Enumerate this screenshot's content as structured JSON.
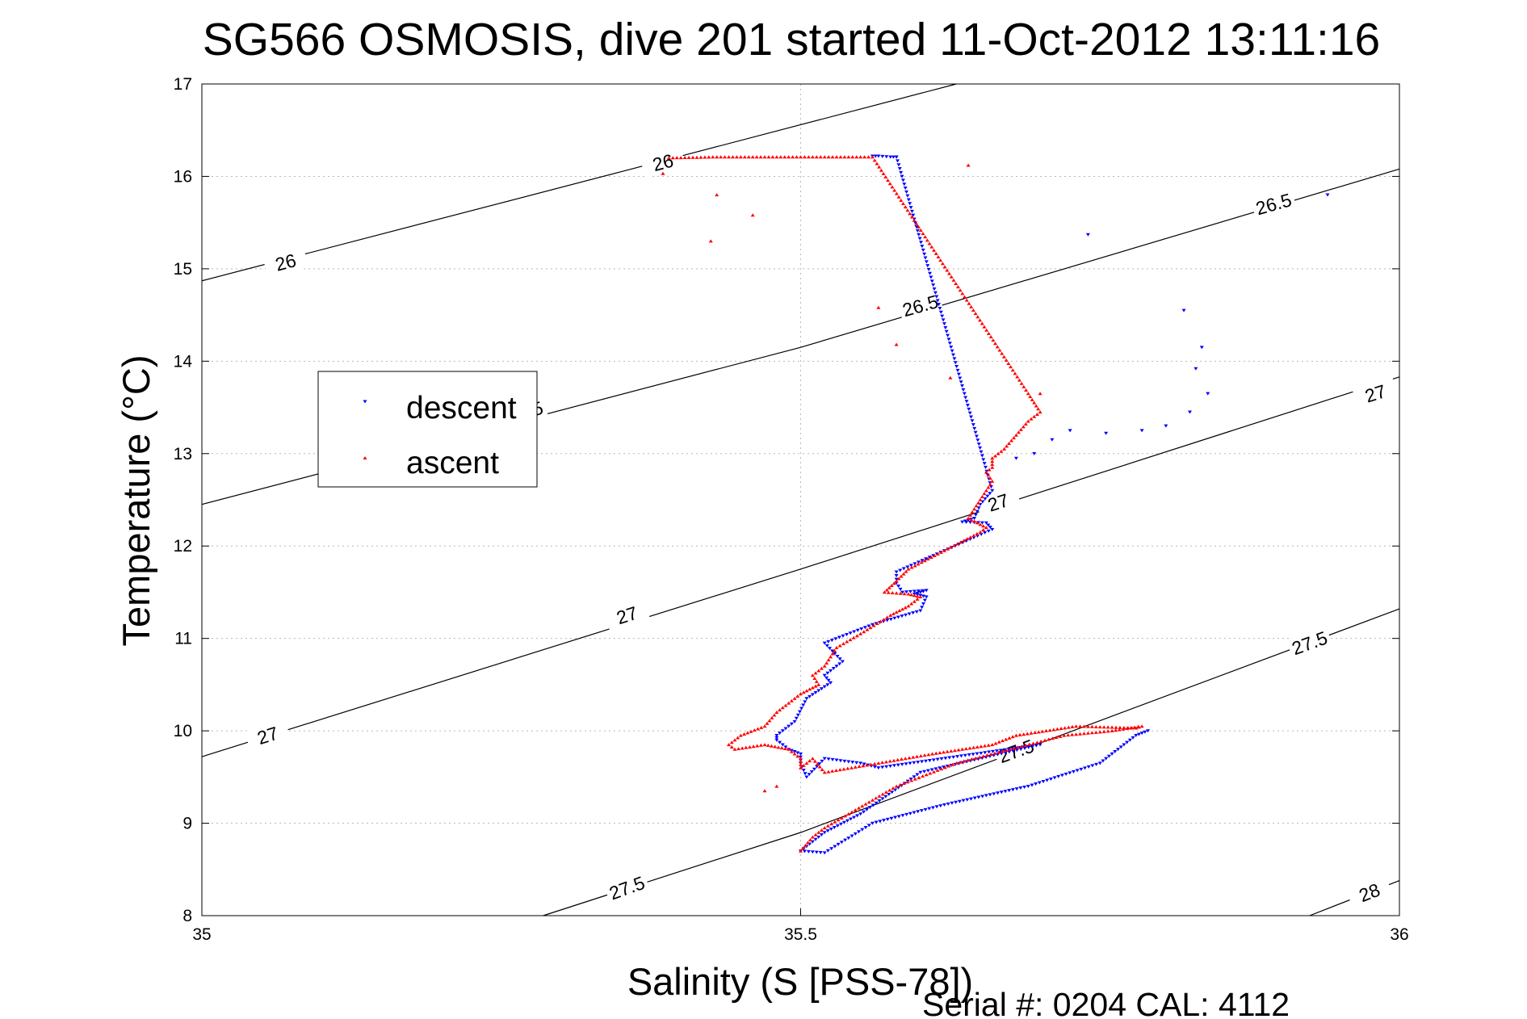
{
  "chart_data": {
    "type": "scatter",
    "title": "SG566 OSMOSIS, dive 201 started 11-Oct-2012 13:11:16",
    "xlabel": "Salinity (S [PSS-78])",
    "ylabel": "Temperature (°C)",
    "xlim": [
      35,
      36
    ],
    "ylim": [
      8,
      17
    ],
    "xticks": [
      "35",
      "35.5",
      "36"
    ],
    "yticks": [
      "8",
      "9",
      "10",
      "11",
      "12",
      "13",
      "14",
      "15",
      "16",
      "17"
    ],
    "grid": true,
    "legend_position": "upper-left",
    "footer": "Serial #: 0204  CAL: 4112",
    "colors": {
      "descent": "#0000ff",
      "ascent": "#ff0000",
      "isopycnal": "#000000"
    },
    "isopycnals": [
      {
        "label": "26",
        "points": [
          [
            35,
            14.87
          ],
          [
            35.35,
            16.05
          ],
          [
            35.63,
            17
          ]
        ],
        "labels_at": [
          [
            35.07,
            15.07
          ],
          [
            35.385,
            16.15
          ]
        ]
      },
      {
        "label": "26.5",
        "points": [
          [
            35,
            12.45
          ],
          [
            35.5,
            14.15
          ],
          [
            36,
            16.08
          ]
        ],
        "labels_at": [
          [
            35.27,
            13.45
          ],
          [
            35.6,
            14.6
          ],
          [
            35.895,
            15.7
          ]
        ]
      },
      {
        "label": "27",
        "points": [
          [
            35,
            9.72
          ],
          [
            35.5,
            11.75
          ],
          [
            36,
            13.83
          ]
        ],
        "labels_at": [
          [
            35.055,
            9.95
          ],
          [
            35.355,
            11.25
          ],
          [
            35.665,
            12.47
          ],
          [
            35.98,
            13.65
          ]
        ]
      },
      {
        "label": "27.5",
        "points": [
          [
            35.285,
            8
          ],
          [
            35.5,
            8.9
          ],
          [
            36,
            11.32
          ]
        ],
        "labels_at": [
          [
            35.355,
            8.3
          ],
          [
            35.68,
            9.78
          ],
          [
            35.925,
            10.95
          ]
        ]
      },
      {
        "label": "28",
        "points": [
          [
            35.925,
            8
          ],
          [
            36,
            8.38
          ]
        ],
        "labels_at": [
          [
            35.975,
            8.25
          ]
        ]
      }
    ],
    "series": [
      {
        "name": "descent",
        "marker": "triangle-down",
        "path": [
          [
            35.56,
            16.22
          ],
          [
            35.565,
            16.22
          ],
          [
            35.575,
            16.21
          ],
          [
            35.58,
            16.21
          ],
          [
            35.66,
            12.6
          ],
          [
            35.65,
            12.45
          ],
          [
            35.645,
            12.3
          ],
          [
            35.635,
            12.26
          ],
          [
            35.655,
            12.25
          ],
          [
            35.66,
            12.18
          ],
          [
            35.62,
            11.95
          ],
          [
            35.58,
            11.72
          ],
          [
            35.58,
            11.6
          ],
          [
            35.585,
            11.5
          ],
          [
            35.605,
            11.52
          ],
          [
            35.595,
            11.48
          ],
          [
            35.605,
            11.45
          ],
          [
            35.6,
            11.3
          ],
          [
            35.56,
            11.15
          ],
          [
            35.52,
            10.95
          ],
          [
            35.535,
            10.75
          ],
          [
            35.52,
            10.6
          ],
          [
            35.525,
            10.52
          ],
          [
            35.505,
            10.35
          ],
          [
            35.495,
            10.1
          ],
          [
            35.48,
            9.95
          ],
          [
            35.48,
            9.9
          ],
          [
            35.49,
            9.8
          ],
          [
            35.5,
            9.75
          ],
          [
            35.5,
            9.65
          ],
          [
            35.505,
            9.5
          ],
          [
            35.52,
            9.7
          ],
          [
            35.55,
            9.65
          ],
          [
            35.565,
            9.6
          ],
          [
            35.7,
            9.85
          ],
          [
            35.6,
            9.55
          ],
          [
            35.55,
            9.1
          ],
          [
            35.52,
            8.9
          ],
          [
            35.5,
            8.7
          ],
          [
            35.52,
            8.68
          ],
          [
            35.56,
            9.0
          ],
          [
            35.62,
            9.2
          ],
          [
            35.69,
            9.4
          ],
          [
            35.75,
            9.65
          ],
          [
            35.78,
            9.95
          ],
          [
            35.79,
            10.0
          ]
        ],
        "scattered": [
          [
            35.58,
            16.21
          ],
          [
            35.94,
            15.8
          ],
          [
            35.74,
            15.37
          ],
          [
            35.82,
            14.55
          ],
          [
            35.835,
            14.15
          ],
          [
            35.83,
            13.92
          ],
          [
            35.84,
            13.65
          ],
          [
            35.825,
            13.45
          ],
          [
            35.805,
            13.3
          ],
          [
            35.785,
            13.25
          ],
          [
            35.755,
            13.22
          ],
          [
            35.725,
            13.25
          ],
          [
            35.71,
            13.15
          ],
          [
            35.695,
            13.0
          ],
          [
            35.68,
            12.95
          ]
        ]
      },
      {
        "name": "ascent",
        "marker": "triangle-up",
        "path": [
          [
            35.39,
            16.2
          ],
          [
            35.43,
            16.21
          ],
          [
            35.49,
            16.21
          ],
          [
            35.53,
            16.21
          ],
          [
            35.56,
            16.21
          ],
          [
            35.69,
            13.65
          ],
          [
            35.695,
            13.55
          ],
          [
            35.7,
            13.45
          ],
          [
            35.69,
            13.35
          ],
          [
            35.68,
            13.2
          ],
          [
            35.67,
            13.05
          ],
          [
            35.66,
            12.95
          ],
          [
            35.66,
            12.85
          ],
          [
            35.655,
            12.8
          ],
          [
            35.66,
            12.7
          ],
          [
            35.655,
            12.6
          ],
          [
            35.65,
            12.5
          ],
          [
            35.645,
            12.4
          ],
          [
            35.64,
            12.3
          ],
          [
            35.655,
            12.2
          ],
          [
            35.65,
            12.15
          ],
          [
            35.62,
            11.95
          ],
          [
            35.59,
            11.75
          ],
          [
            35.58,
            11.62
          ],
          [
            35.57,
            11.5
          ],
          [
            35.59,
            11.48
          ],
          [
            35.6,
            11.45
          ],
          [
            35.59,
            11.35
          ],
          [
            35.575,
            11.25
          ],
          [
            35.55,
            11.05
          ],
          [
            35.53,
            10.9
          ],
          [
            35.52,
            10.7
          ],
          [
            35.51,
            10.6
          ],
          [
            35.515,
            10.5
          ],
          [
            35.5,
            10.4
          ],
          [
            35.48,
            10.2
          ],
          [
            35.47,
            10.05
          ],
          [
            35.45,
            9.95
          ],
          [
            35.44,
            9.85
          ],
          [
            35.445,
            9.8
          ],
          [
            35.47,
            9.85
          ],
          [
            35.49,
            9.8
          ],
          [
            35.5,
            9.7
          ],
          [
            35.5,
            9.6
          ],
          [
            35.51,
            9.7
          ],
          [
            35.52,
            9.55
          ],
          [
            35.61,
            9.75
          ],
          [
            35.66,
            9.85
          ],
          [
            35.68,
            9.95
          ],
          [
            35.73,
            10.05
          ],
          [
            35.78,
            10.03
          ],
          [
            35.785,
            10.05
          ],
          [
            35.76,
            10.0
          ],
          [
            35.72,
            9.95
          ],
          [
            35.63,
            9.65
          ],
          [
            35.58,
            9.4
          ],
          [
            35.54,
            9.1
          ],
          [
            35.52,
            8.95
          ],
          [
            35.51,
            8.85
          ],
          [
            35.5,
            8.7
          ]
        ],
        "scattered": [
          [
            35.385,
            16.03
          ],
          [
            35.43,
            15.8
          ],
          [
            35.46,
            15.58
          ],
          [
            35.425,
            15.3
          ],
          [
            35.565,
            14.58
          ],
          [
            35.58,
            14.18
          ],
          [
            35.625,
            13.82
          ],
          [
            35.7,
            13.65
          ],
          [
            35.64,
            16.12
          ],
          [
            35.47,
            9.35
          ],
          [
            35.48,
            9.4
          ]
        ]
      }
    ]
  },
  "legend": {
    "descent_label": "descent",
    "ascent_label": "ascent"
  }
}
